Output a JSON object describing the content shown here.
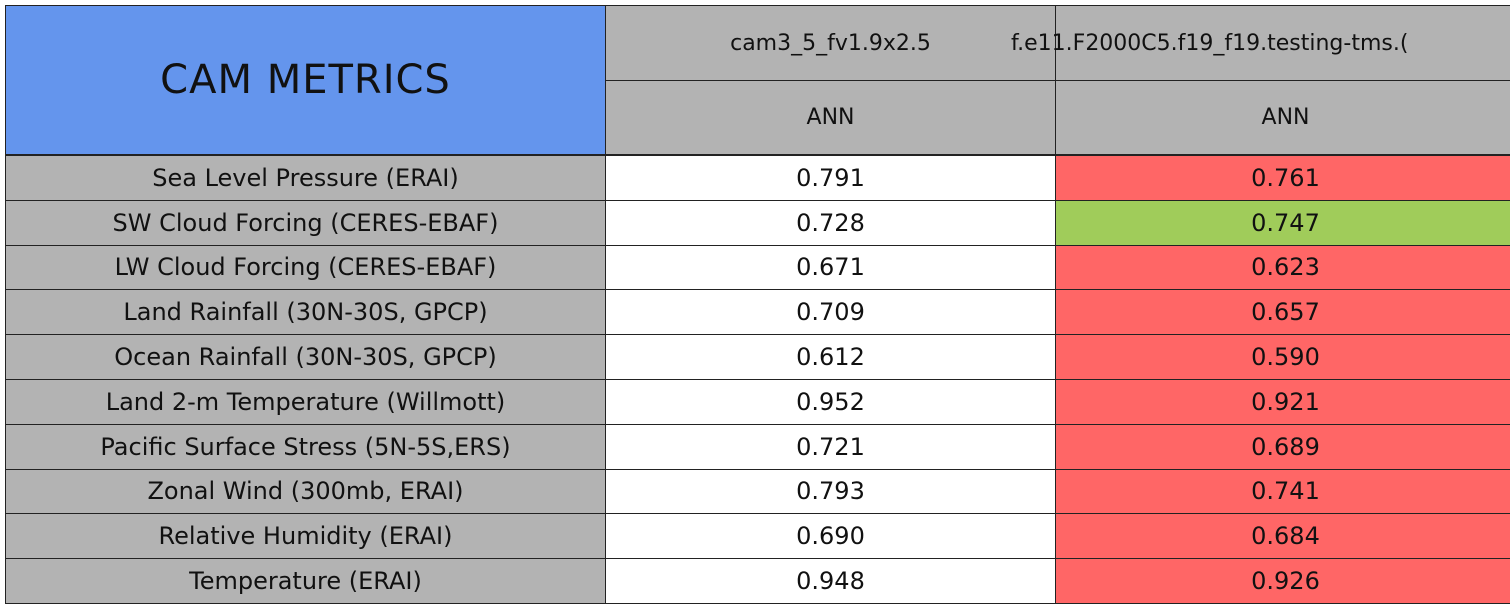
{
  "header": {
    "title": "CAM METRICS",
    "columns": [
      {
        "name": "cam3_5_fv1.9x2.5",
        "season": "ANN"
      },
      {
        "name": "f.e11.F2000C5.f19_f19.testing-tms.(",
        "season": "ANN"
      }
    ]
  },
  "table": {
    "rows": [
      [
        "Sea Level Pressure (ERAI)",
        "0.791",
        "0.761"
      ],
      [
        "SW Cloud Forcing (CERES-EBAF)",
        "0.728",
        "0.747"
      ],
      [
        "LW Cloud Forcing (CERES-EBAF)",
        "0.671",
        "0.623"
      ],
      [
        "Land Rainfall (30N-30S, GPCP)",
        "0.709",
        "0.657"
      ],
      [
        "Ocean Rainfall (30N-30S, GPCP)",
        "0.612",
        "0.590"
      ],
      [
        "Land 2-m Temperature (Willmott)",
        "0.952",
        "0.921"
      ],
      [
        "Pacific Surface Stress (5N-5S,ERS)",
        "0.721",
        "0.689"
      ],
      [
        "Zonal Wind (300mb, ERAI)",
        "0.793",
        "0.741"
      ],
      [
        "Relative Humidity (ERAI)",
        "0.690",
        "0.684"
      ],
      [
        "Temperature (ERAI)",
        "0.948",
        "0.926"
      ]
    ],
    "cell_colors": [
      [
        "#ffffff",
        "#ff6666"
      ],
      [
        "#ffffff",
        "#a0cc5a"
      ],
      [
        "#ffffff",
        "#ff6666"
      ],
      [
        "#ffffff",
        "#ff6666"
      ],
      [
        "#ffffff",
        "#ff6666"
      ],
      [
        "#ffffff",
        "#ff6666"
      ],
      [
        "#ffffff",
        "#ff6666"
      ],
      [
        "#ffffff",
        "#ff6666"
      ],
      [
        "#ffffff",
        "#ff6666"
      ],
      [
        "#ffffff",
        "#ff6666"
      ]
    ]
  }
}
